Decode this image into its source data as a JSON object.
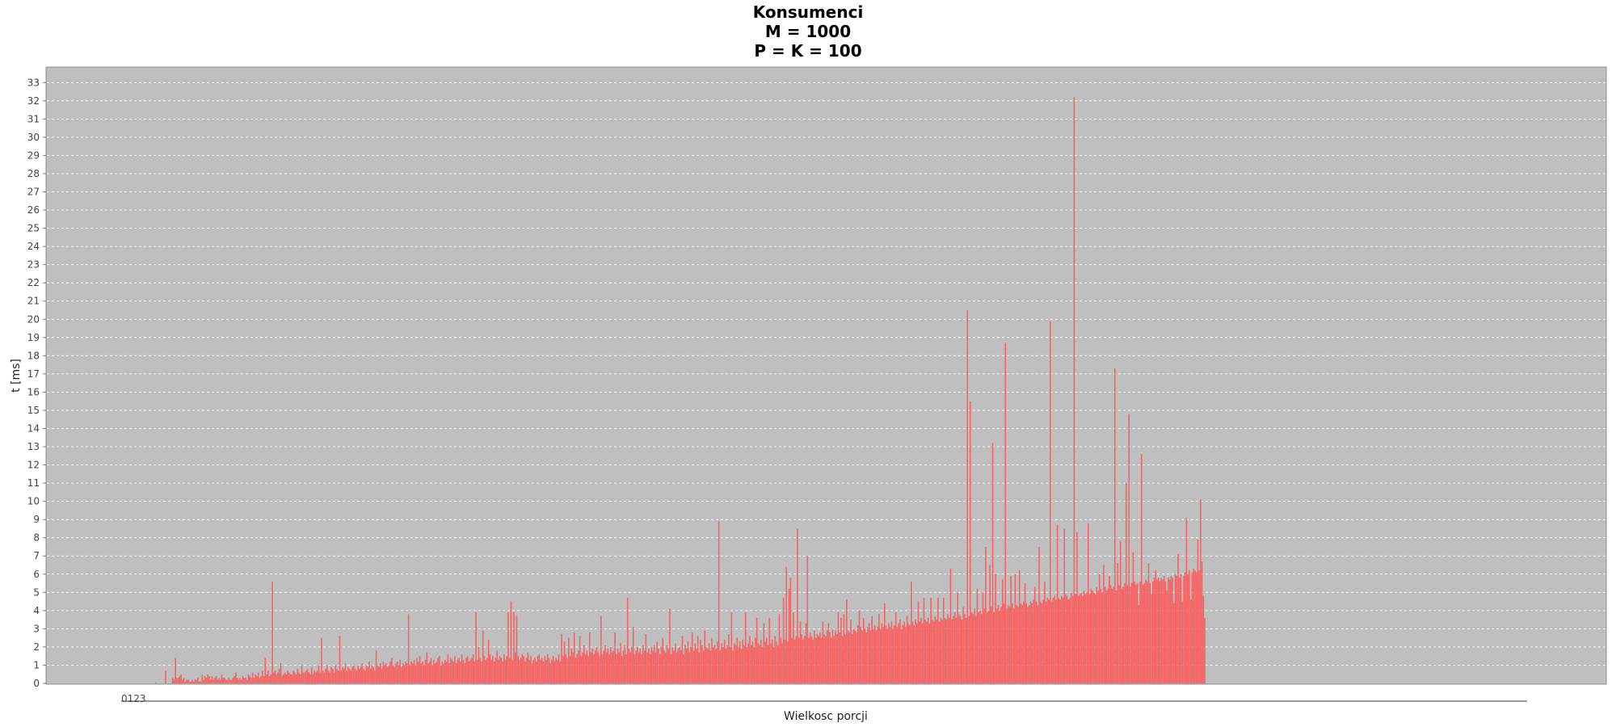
{
  "chart_data": {
    "type": "bar",
    "title_lines": [
      "Konsumenci",
      "M = 1000",
      "P = K = 100"
    ],
    "xlabel": "Wielkosc porcji",
    "ylabel": "t [ms]",
    "ylim": [
      0,
      33.5
    ],
    "yticks": [
      0,
      1,
      2,
      3,
      4,
      5,
      6,
      7,
      8,
      9,
      10,
      11,
      12,
      13,
      14,
      15,
      16,
      17,
      18,
      19,
      20,
      21,
      22,
      23,
      24,
      25,
      26,
      27,
      28,
      29,
      30,
      31,
      32,
      33
    ],
    "x_tick_text": "0123",
    "n_categories": 1000,
    "grid": true,
    "series": [
      {
        "values": [
          0,
          0,
          0,
          0,
          0,
          0,
          0,
          0,
          0,
          0,
          0,
          0,
          0,
          0,
          0,
          0,
          0,
          0,
          0,
          0,
          0,
          0,
          0,
          0.05,
          0,
          0,
          0,
          0,
          0,
          0,
          0.7,
          0,
          0,
          0,
          0,
          0.3,
          0.2,
          1.4,
          0.3,
          0.3,
          0.4,
          0.5,
          0.2,
          0.3,
          0.1,
          0.2,
          0.2,
          0.1,
          0.1,
          0.2,
          0.1,
          0.2,
          0.2,
          0.3,
          0.1,
          0.1,
          0.5,
          0.2,
          0.4,
          0.3,
          0.5,
          0.4,
          0.2,
          0.4,
          0.2,
          0.3,
          0.4,
          0.2,
          0.3,
          0.2,
          0.5,
          0.3,
          0.3,
          0.2,
          0.2,
          0.3,
          0.2,
          0.2,
          0.3,
          0.4,
          0.6,
          0.3,
          0.2,
          0.3,
          0.2,
          0.4,
          0.3,
          0.3,
          0.2,
          0.5,
          0.4,
          0.3,
          0.6,
          0.3,
          0.5,
          0.4,
          0.6,
          0.3,
          0.4,
          0.7,
          0.4,
          1.4,
          0.5,
          0.7,
          0.4,
          0.5,
          5.6,
          0.6,
          0.7,
          0.5,
          0.6,
          0.8,
          1.1,
          0.4,
          0.5,
          0.6,
          0.5,
          0.7,
          0.6,
          0.5,
          0.5,
          0.7,
          0.6,
          0.5,
          0.8,
          0.6,
          0.5,
          1.0,
          0.6,
          0.6,
          0.7,
          0.8,
          0.6,
          0.5,
          0.9,
          0.5,
          0.7,
          0.6,
          0.7,
          1.0,
          0.6,
          2.5,
          0.7,
          0.6,
          0.8,
          1.0,
          0.7,
          0.6,
          0.9,
          0.8,
          0.6,
          1.0,
          0.8,
          0.7,
          2.6,
          0.7,
          0.9,
          0.8,
          1.1,
          0.7,
          0.9,
          0.8,
          0.7,
          0.9,
          1.0,
          0.8,
          0.7,
          1.0,
          0.8,
          0.9,
          1.1,
          0.8,
          0.7,
          1.0,
          0.9,
          1.2,
          0.8,
          1.0,
          0.9,
          0.7,
          1.8,
          1.0,
          0.9,
          1.1,
          0.8,
          1.2,
          1.0,
          1.1,
          0.9,
          1.0,
          1.2,
          1.4,
          1.0,
          0.9,
          1.1,
          1.2,
          1.0,
          1.3,
          0.9,
          1.1,
          1.0,
          1.2,
          1.1,
          3.8,
          1.0,
          1.2,
          1.1,
          1.3,
          1.0,
          1.4,
          1.2,
          1.5,
          1.1,
          1.2,
          1.0,
          1.3,
          1.7,
          1.1,
          1.2,
          1.4,
          1.0,
          1.3,
          1.1,
          1.2,
          1.4,
          1.5,
          1.0,
          1.2,
          1.1,
          1.3,
          1.2,
          1.6,
          1.1,
          1.4,
          1.3,
          1.2,
          1.5,
          1.1,
          1.3,
          1.4,
          1.2,
          1.6,
          1.3,
          1.1,
          1.4,
          1.5,
          1.2,
          1.3,
          1.4,
          1.6,
          1.2,
          3.9,
          1.3,
          2.0,
          1.4,
          1.2,
          2.9,
          1.5,
          1.3,
          1.4,
          2.4,
          1.6,
          1.3,
          1.5,
          1.2,
          1.4,
          1.8,
          1.3,
          1.5,
          1.4,
          1.2,
          1.6,
          1.3,
          1.5,
          3.9,
          1.4,
          4.5,
          1.3,
          3.9,
          1.7,
          3.7,
          1.5,
          1.3,
          1.4,
          1.6,
          1.5,
          1.2,
          1.4,
          1.7,
          1.3,
          1.5,
          1.1,
          1.3,
          1.4,
          1.2,
          1.5,
          1.6,
          1.3,
          1.4,
          1.2,
          1.5,
          1.3,
          1.6,
          1.4,
          1.1,
          1.3,
          1.5,
          1.2,
          1.4,
          1.3,
          1.6,
          1.2,
          2.7,
          1.5,
          2.3,
          1.6,
          1.4,
          2.5,
          1.5,
          1.9,
          1.7,
          2.8,
          1.4,
          1.6,
          1.8,
          2.6,
          1.5,
          1.7,
          2.1,
          1.6,
          1.8,
          1.5,
          2.8,
          1.7,
          1.9,
          1.6,
          1.8,
          2.0,
          1.7,
          1.5,
          3.7,
          1.6,
          1.8,
          2.1,
          1.7,
          1.9,
          1.6,
          2.0,
          1.7,
          1.8,
          2.8,
          1.6,
          1.9,
          1.7,
          2.2,
          1.5,
          1.8,
          2.1,
          1.6,
          4.7,
          1.9,
          1.7,
          2.0,
          3.1,
          1.6,
          1.8,
          2.0,
          1.7,
          1.9,
          1.6,
          2.1,
          1.8,
          2.7,
          1.7,
          1.9,
          1.6,
          2.0,
          1.8,
          2.1,
          1.7,
          2.3,
          1.9,
          1.6,
          2.0,
          2.5,
          1.8,
          1.7,
          2.1,
          1.9,
          4.1,
          1.6,
          2.0,
          1.8,
          2.2,
          1.7,
          1.9,
          2.0,
          1.8,
          2.6,
          1.6,
          2.1,
          1.9,
          2.3,
          1.7,
          2.0,
          2.8,
          1.8,
          2.2,
          1.9,
          2.6,
          1.7,
          2.4,
          2.1,
          1.8,
          2.9,
          2.0,
          1.9,
          2.2,
          1.8,
          2.5,
          2.0,
          2.1,
          1.9,
          2.3,
          8.9,
          1.8,
          2.2,
          2.0,
          2.4,
          1.9,
          2.1,
          2.7,
          2.0,
          3.9,
          1.8,
          2.2,
          2.1,
          2.5,
          2.0,
          2.3,
          1.9,
          2.4,
          2.1,
          3.9,
          2.0,
          2.2,
          2.6,
          2.1,
          2.3,
          2.0,
          2.5,
          3.6,
          2.2,
          2.1,
          2.4,
          2.0,
          3.3,
          2.3,
          2.5,
          2.1,
          3.6,
          2.2,
          2.4,
          2.0,
          2.6,
          2.3,
          2.1,
          3.8,
          2.5,
          2.2,
          4.7,
          2.4,
          6.4,
          2.3,
          5.2,
          5.8,
          2.5,
          3.9,
          2.4,
          2.6,
          8.5,
          2.5,
          3.4,
          2.7,
          2.4,
          2.6,
          3.3,
          7.0,
          2.5,
          2.8,
          2.6,
          2.4,
          2.9,
          2.5,
          2.7,
          2.6,
          2.8,
          2.5,
          3.4,
          2.7,
          2.6,
          2.9,
          3.3,
          2.8,
          2.5,
          3.0,
          2.6,
          2.9,
          2.7,
          3.9,
          2.8,
          3.6,
          2.6,
          3.8,
          2.7,
          4.6,
          2.9,
          2.8,
          3.5,
          2.7,
          3.0,
          2.9,
          2.8,
          3.2,
          4.0,
          3.1,
          2.9,
          3.6,
          3.0,
          2.8,
          3.1,
          3.3,
          2.9,
          3.7,
          3.0,
          3.2,
          2.9,
          3.1,
          3.8,
          3.0,
          3.3,
          3.1,
          4.4,
          3.2,
          3.0,
          3.3,
          3.1,
          3.4,
          3.0,
          3.2,
          3.9,
          3.1,
          3.3,
          3.5,
          3.0,
          3.2,
          3.4,
          3.1,
          3.7,
          3.3,
          3.2,
          5.6,
          3.4,
          3.2,
          3.5,
          3.3,
          4.5,
          3.4,
          3.6,
          3.3,
          4.7,
          3.5,
          3.4,
          3.6,
          3.3,
          4.7,
          3.5,
          3.4,
          3.7,
          3.5,
          4.7,
          3.4,
          3.6,
          3.5,
          4.7,
          3.6,
          3.5,
          3.8,
          3.6,
          6.3,
          3.5,
          3.7,
          3.9,
          3.6,
          5.0,
          3.8,
          3.7,
          3.5,
          4.2,
          3.8,
          3.6,
          20.5,
          3.7,
          15.5,
          3.9,
          3.8,
          4.1,
          3.7,
          5.2,
          3.9,
          4.0,
          3.8,
          5.0,
          4.1,
          7.5,
          3.9,
          4.0,
          6.5,
          4.2,
          13.2,
          3.9,
          6.0,
          4.1,
          4.3,
          4.0,
          4.2,
          5.7,
          4.4,
          18.7,
          4.1,
          4.3,
          4.2,
          5.9,
          4.4,
          4.1,
          6.0,
          4.3,
          4.2,
          6.2,
          4.4,
          4.3,
          4.5,
          5.5,
          4.4,
          4.2,
          4.3,
          4.5,
          4.4,
          4.6,
          5.3,
          4.5,
          4.3,
          7.5,
          4.5,
          4.4,
          4.6,
          5.6,
          4.5,
          4.7,
          4.6,
          19.9,
          4.5,
          4.7,
          4.8,
          4.6,
          8.7,
          4.7,
          4.6,
          4.8,
          4.7,
          8.5,
          4.9,
          4.8,
          4.6,
          4.7,
          5.0,
          4.8,
          32.2,
          4.9,
          8.3,
          4.8,
          4.9,
          5.0,
          4.8,
          5.1,
          4.9,
          5.0,
          8.8,
          4.9,
          5.2,
          5.1,
          5.0,
          4.9,
          5.3,
          5.1,
          6.0,
          5.2,
          5.0,
          6.5,
          5.3,
          5.1,
          5.2,
          5.9,
          5.4,
          5.2,
          5.3,
          17.3,
          5.1,
          6.6,
          5.4,
          7.8,
          5.2,
          5.3,
          5.5,
          11.0,
          5.4,
          14.8,
          5.3,
          5.5,
          7.2,
          5.6,
          5.4,
          5.5,
          4.3,
          5.6,
          12.6,
          5.4,
          5.5,
          5.7,
          5.6,
          6.6,
          5.5,
          4.9,
          5.6,
          5.8,
          6.2,
          5.7,
          5.8,
          5.6,
          5.8,
          5.7,
          5.9,
          5.6,
          5.1,
          5.8,
          5.7,
          5.9,
          5.8,
          4.4,
          6.0,
          5.9,
          7.1,
          5.8,
          6.0,
          4.5,
          5.9,
          6.1,
          9.1,
          6.0,
          6.2,
          4.6,
          6.1,
          6.3,
          6.2,
          6.1,
          7.9,
          6.2,
          10.1,
          6.7,
          4.8,
          3.6
        ]
      }
    ]
  }
}
